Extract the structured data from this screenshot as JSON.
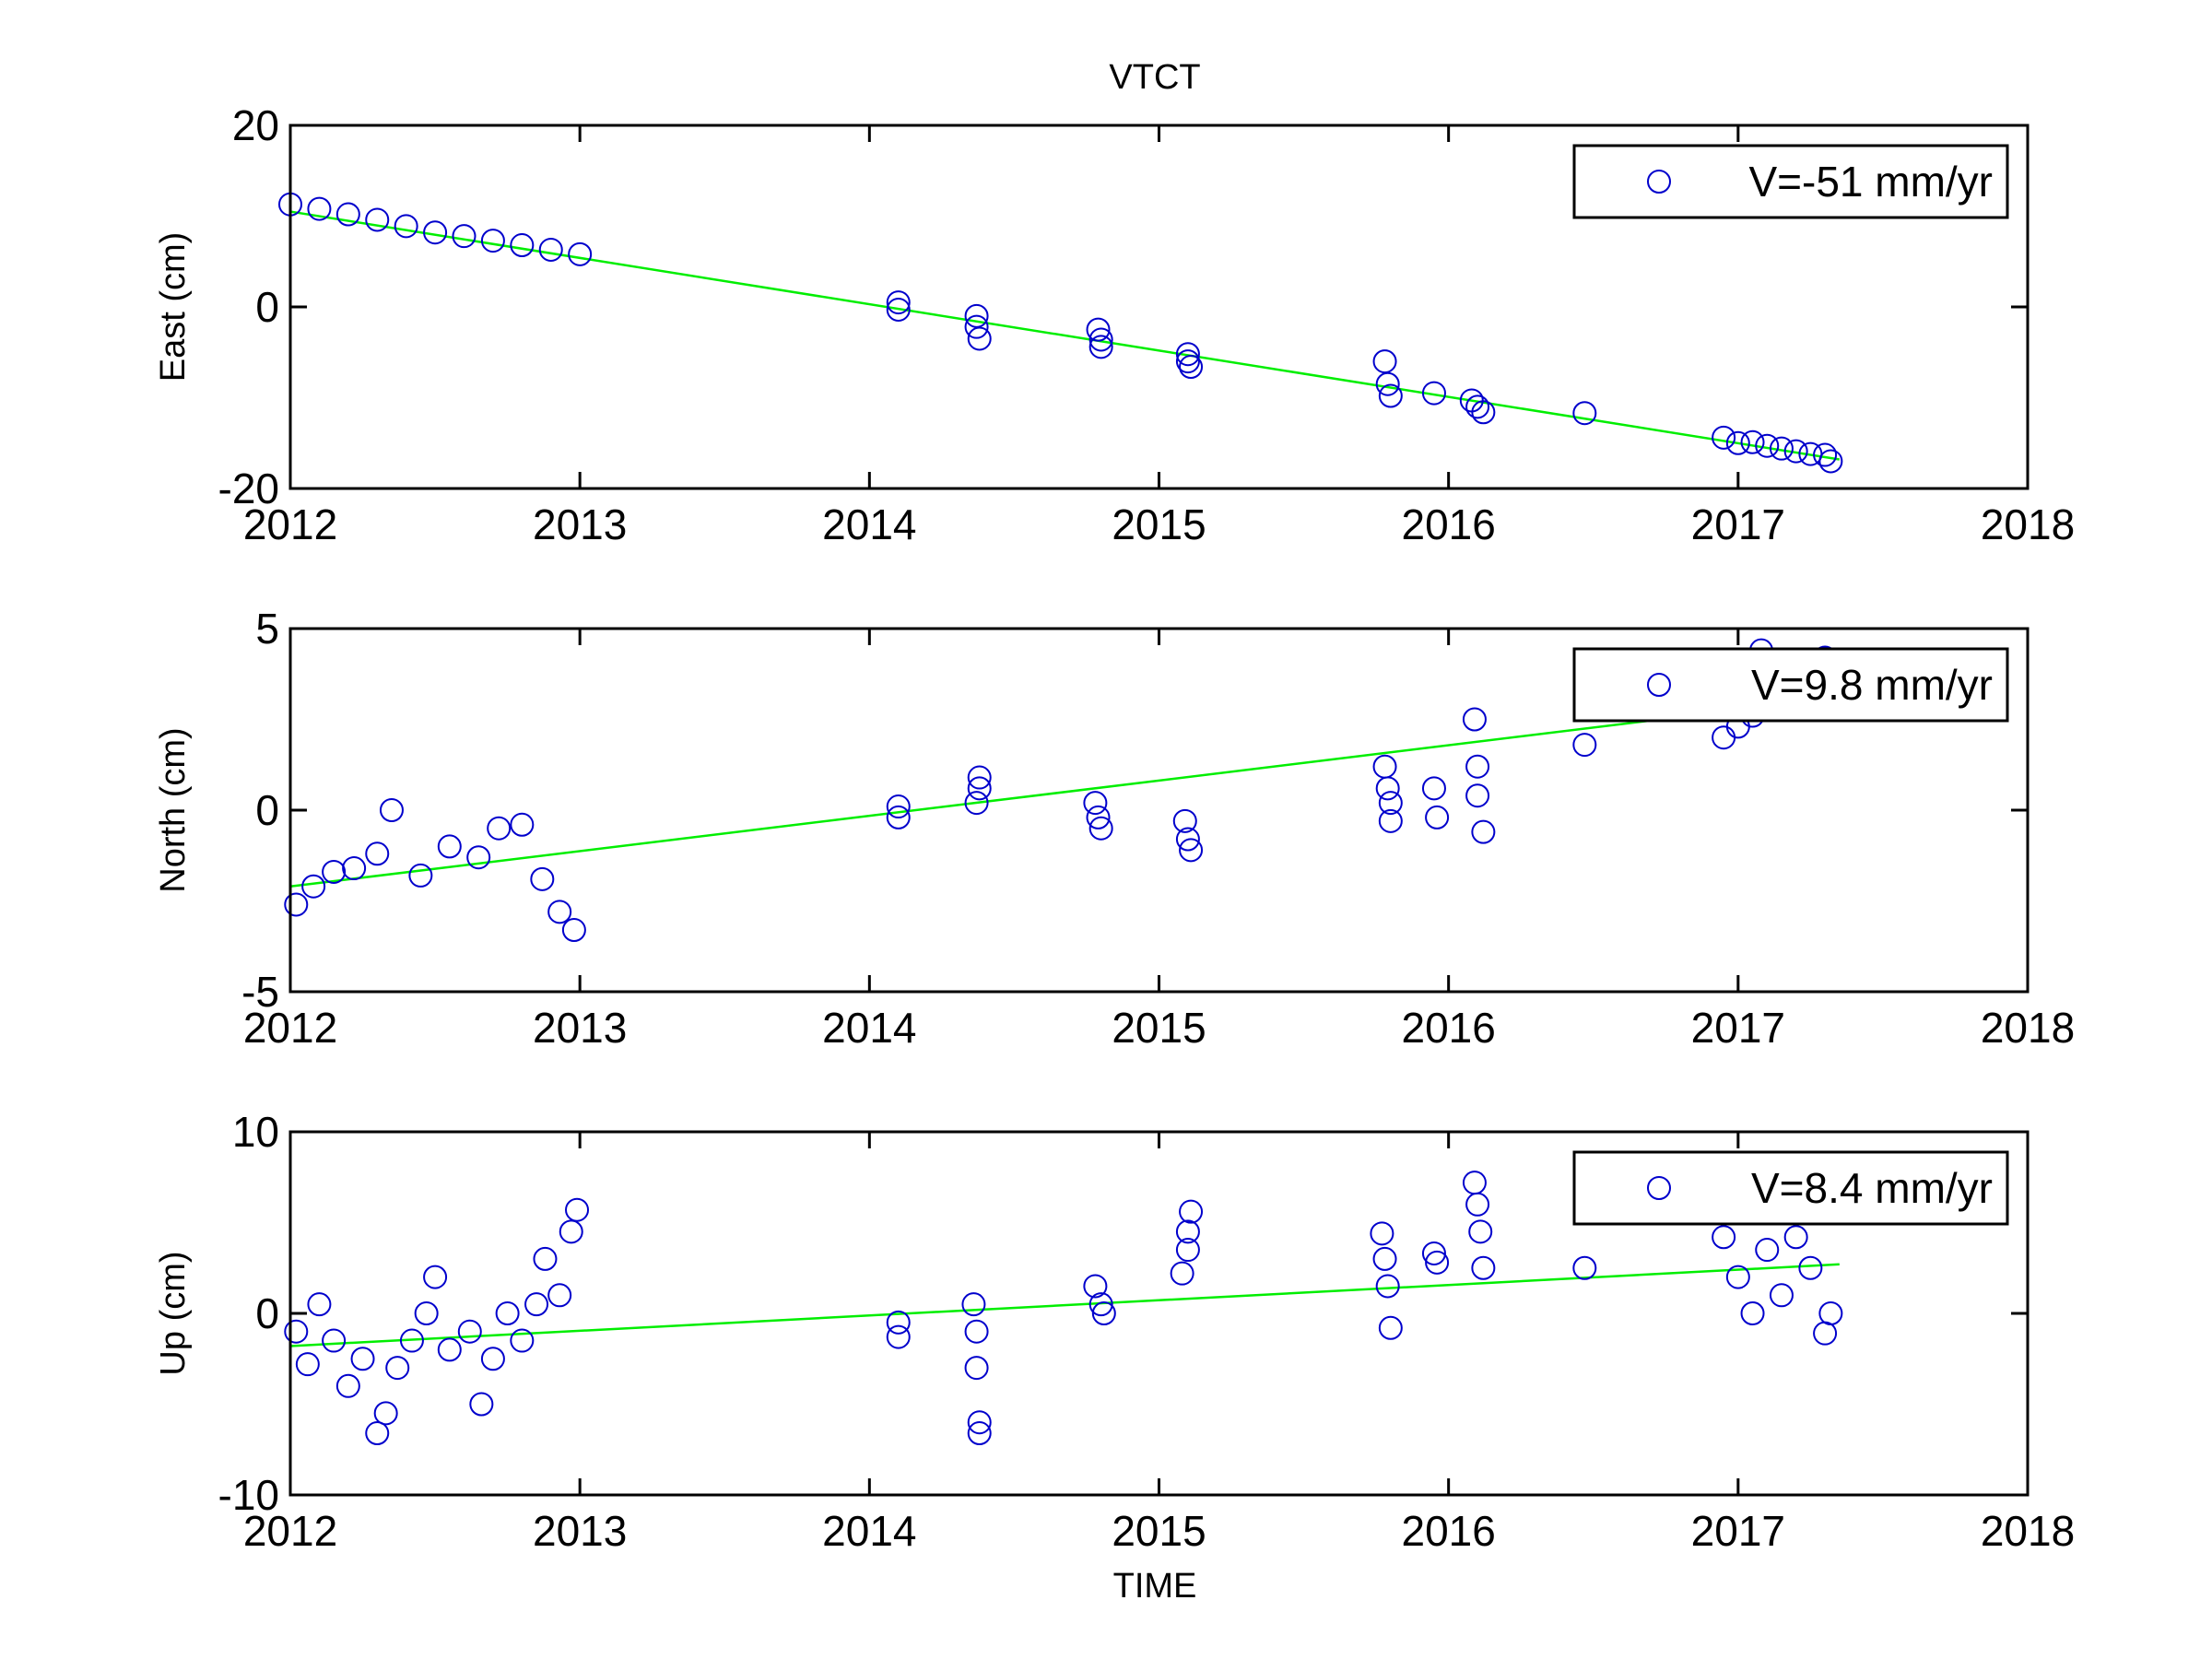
{
  "figure": {
    "title": "VTCT",
    "xlabel": "TIME"
  },
  "colors": {
    "points": "#0000cc",
    "fit": "#00ee00",
    "axes": "#000000",
    "background": "#ffffff"
  },
  "chart_data": [
    {
      "type": "scatter",
      "ylabel": "East (cm)",
      "xlim": [
        2012,
        2018
      ],
      "ylim": [
        -20,
        20
      ],
      "xticks": [
        "2012",
        "2013",
        "2014",
        "2015",
        "2016",
        "2017",
        "2018"
      ],
      "yticks": [
        "-20",
        "0",
        "20"
      ],
      "legend": {
        "label": "V=-51 mm/yr",
        "position": "top-right"
      },
      "fit": {
        "x": [
          2012.0,
          2017.35
        ],
        "y": [
          10.5,
          -16.8
        ]
      },
      "series": [
        {
          "segments": [
            {
              "x": [
                2012.0,
                2012.1,
                2012.2,
                2012.3,
                2012.4,
                2012.5,
                2012.6,
                2012.7,
                2012.8,
                2012.9,
                2013.0
              ],
              "y": [
                11.3,
                10.8,
                10.2,
                9.6,
                8.9,
                8.2,
                7.8,
                7.3,
                6.8,
                6.3,
                5.8
              ]
            },
            {
              "x": [
                2014.1,
                2014.1,
                2014.37,
                2014.37,
                2014.38,
                2014.79,
                2014.8,
                2014.8,
                2015.1,
                2015.1,
                2015.11
              ],
              "y": [
                0.5,
                -0.3,
                -1.0,
                -2.2,
                -3.5,
                -2.5,
                -3.6,
                -4.4,
                -5.2,
                -6.0,
                -6.6
              ]
            },
            {
              "x": [
                2015.78,
                2015.79,
                2015.8,
                2015.95,
                2016.08,
                2016.1,
                2016.12,
                2016.47
              ],
              "y": [
                -6.0,
                -8.5,
                -9.8,
                -9.5,
                -10.3,
                -11.0,
                -11.6,
                -11.7
              ]
            },
            {
              "x": [
                2016.95,
                2017.0,
                2017.05,
                2017.1,
                2017.15,
                2017.2,
                2017.25,
                2017.3,
                2017.32
              ],
              "y": [
                -14.4,
                -15.0,
                -14.9,
                -15.3,
                -15.6,
                -15.9,
                -16.2,
                -16.3,
                -17.0
              ]
            }
          ]
        }
      ]
    },
    {
      "type": "scatter",
      "ylabel": "North (cm)",
      "xlim": [
        2012,
        2018
      ],
      "ylim": [
        -5,
        5
      ],
      "xticks": [
        "2012",
        "2013",
        "2014",
        "2015",
        "2016",
        "2017",
        "2018"
      ],
      "yticks": [
        "-5",
        "0",
        "5"
      ],
      "legend": {
        "label": "V=9.8 mm/yr",
        "position": "top-right"
      },
      "fit": {
        "x": [
          2012.0,
          2017.35
        ],
        "y": [
          -2.1,
          3.1
        ]
      },
      "series": [
        {
          "segments": [
            {
              "x": [
                2012.02,
                2012.08,
                2012.15,
                2012.22,
                2012.3,
                2012.35,
                2012.45,
                2012.55,
                2012.65,
                2012.72,
                2012.8,
                2012.87,
                2012.93,
                2012.98
              ],
              "y": [
                -2.6,
                -2.1,
                -1.7,
                -1.6,
                -1.2,
                0.0,
                -1.8,
                -1.0,
                -1.3,
                -0.5,
                -0.4,
                -1.9,
                -2.8,
                -3.3
              ]
            },
            {
              "x": [
                2014.1,
                2014.1,
                2014.37,
                2014.38,
                2014.38,
                2014.78,
                2014.79,
                2014.8,
                2015.09,
                2015.1,
                2015.11
              ],
              "y": [
                0.1,
                -0.2,
                0.2,
                0.6,
                0.9,
                0.2,
                -0.2,
                -0.5,
                -0.3,
                -0.8,
                -1.1
              ]
            },
            {
              "x": [
                2015.78,
                2015.79,
                2015.8,
                2015.8,
                2015.95,
                2015.96,
                2016.09,
                2016.1,
                2016.1,
                2016.12,
                2016.47
              ],
              "y": [
                1.2,
                0.6,
                0.2,
                -0.3,
                0.6,
                -0.2,
                2.5,
                1.2,
                0.4,
                -0.6,
                1.8
              ]
            },
            {
              "x": [
                2016.95,
                2017.0,
                2017.05,
                2017.08,
                2017.3
              ],
              "y": [
                2.0,
                2.3,
                2.6,
                4.4,
                4.2
              ]
            }
          ]
        }
      ]
    },
    {
      "type": "scatter",
      "ylabel": "Up (cm)",
      "xlim": [
        2012,
        2018
      ],
      "ylim": [
        -10,
        10
      ],
      "xticks": [
        "2012",
        "2013",
        "2014",
        "2015",
        "2016",
        "2017",
        "2018"
      ],
      "yticks": [
        "-10",
        "0",
        "10"
      ],
      "legend": {
        "label": "V=8.4 mm/yr",
        "position": "top-right"
      },
      "fit": {
        "x": [
          2012.0,
          2017.35
        ],
        "y": [
          -1.8,
          2.7
        ]
      },
      "series": [
        {
          "segments": [
            {
              "x": [
                2012.02,
                2012.06,
                2012.1,
                2012.15,
                2012.2,
                2012.25,
                2012.3,
                2012.33,
                2012.37,
                2012.42,
                2012.47,
                2012.5,
                2012.55,
                2012.62,
                2012.66,
                2012.7,
                2012.75,
                2012.8,
                2012.85,
                2012.88,
                2012.93,
                2012.97,
                2012.99
              ],
              "y": [
                -1.0,
                -2.8,
                0.5,
                -1.5,
                -4.0,
                -2.5,
                -6.6,
                -5.5,
                -3.0,
                -1.5,
                0.0,
                2.0,
                -2.0,
                -1.0,
                -5.0,
                -2.5,
                0.0,
                -1.5,
                0.5,
                3.0,
                1.0,
                4.5,
                5.7
              ]
            },
            {
              "x": [
                2014.1,
                2014.1,
                2014.36,
                2014.37,
                2014.37,
                2014.38,
                2014.38,
                2014.78,
                2014.8,
                2014.81,
                2015.08,
                2015.1,
                2015.1,
                2015.11
              ],
              "y": [
                -0.5,
                -1.3,
                0.5,
                -1.0,
                -3.0,
                -6.0,
                -6.6,
                1.5,
                0.5,
                0.0,
                2.2,
                3.5,
                4.5,
                5.6
              ]
            },
            {
              "x": [
                2015.77,
                2015.78,
                2015.79,
                2015.8,
                2015.95,
                2015.96,
                2016.09,
                2016.1,
                2016.11,
                2016.12,
                2016.47
              ],
              "y": [
                4.4,
                3.0,
                1.5,
                -0.8,
                3.3,
                2.8,
                7.2,
                6.0,
                4.5,
                2.5,
                2.5
              ]
            },
            {
              "x": [
                2016.95,
                2017.0,
                2017.05,
                2017.1,
                2017.15,
                2017.2,
                2017.25,
                2017.3,
                2017.32
              ],
              "y": [
                4.2,
                2.0,
                0.0,
                3.5,
                1.0,
                4.2,
                2.5,
                -1.1,
                0.0
              ]
            }
          ]
        }
      ]
    }
  ]
}
